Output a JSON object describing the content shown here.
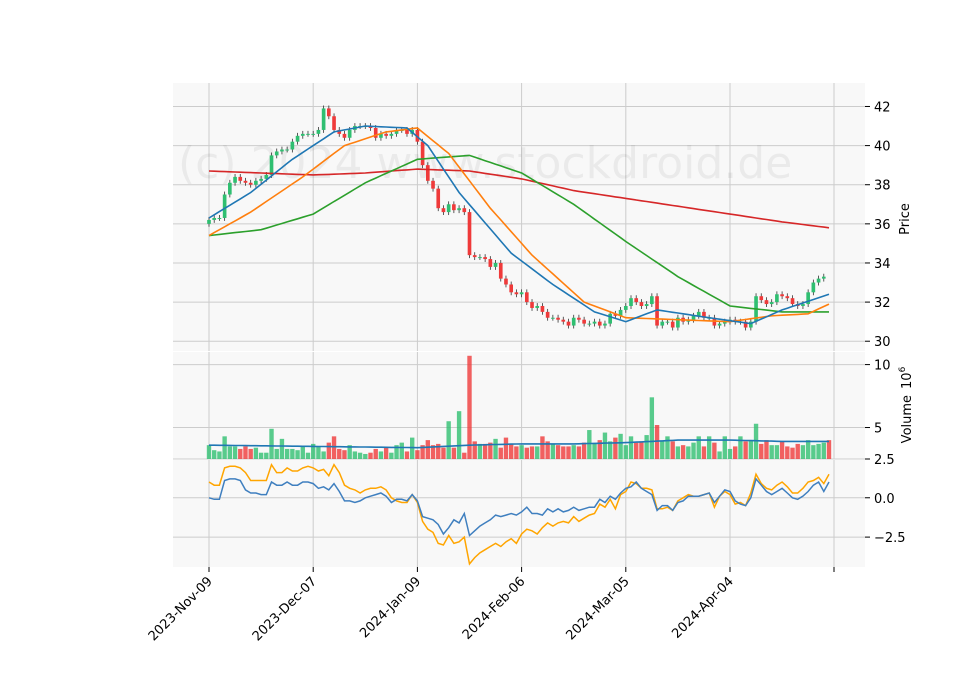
{
  "watermark": "(c) 2024 www.stockdroid.de",
  "colors": {
    "up": "#2fbf71",
    "down": "#ef3a3a",
    "ma_fast": "#1f77b4",
    "ma_mid": "#ff7f0e",
    "ma_slow": "#2ca02c",
    "ma_long": "#d62728",
    "osc_a": "#3f7fbf",
    "osc_b": "#ffa500",
    "panel_bg": "#f8f8f8",
    "grid": "#cccccc"
  },
  "chart_data": {
    "type": "candlestick",
    "x_ticks": [
      "2023-Nov-09",
      "2023-Dec-07",
      "2024-Jan-09",
      "2024-Feb-06",
      "2024-Mar-05",
      "2024-Apr-04"
    ],
    "x_tick_positions": [
      0,
      20,
      40,
      60,
      80,
      100
    ],
    "price_panel": {
      "ylabel": "Price",
      "yticks": [
        30,
        32,
        34,
        36,
        38,
        40,
        42
      ],
      "ylim": [
        29.5,
        43.2
      ],
      "close": [
        36.2,
        36.3,
        36.3,
        37.5,
        38.1,
        38.4,
        38.2,
        38.1,
        38.0,
        38.2,
        38.3,
        38.5,
        39.5,
        39.7,
        39.8,
        39.8,
        40.2,
        40.5,
        40.6,
        40.6,
        40.6,
        40.8,
        41.9,
        41.5,
        40.8,
        40.6,
        40.4,
        40.8,
        41.0,
        41.0,
        41.0,
        40.9,
        40.4,
        40.6,
        40.5,
        40.6,
        40.8,
        40.8,
        40.6,
        40.8,
        40.2,
        39.0,
        38.2,
        37.8,
        36.8,
        36.6,
        37.0,
        36.7,
        36.8,
        36.6,
        34.4,
        34.3,
        34.3,
        34.2,
        33.8,
        34.0,
        33.2,
        32.9,
        32.5,
        32.4,
        32.5,
        32.0,
        31.7,
        31.8,
        31.5,
        31.2,
        31.2,
        31.1,
        31.0,
        30.8,
        31.2,
        31.1,
        30.9,
        30.9,
        31.0,
        30.8,
        30.9,
        31.4,
        31.3,
        31.6,
        31.8,
        32.2,
        32.0,
        31.8,
        31.9,
        32.3,
        30.8,
        31.0,
        31.0,
        30.7,
        31.2,
        31.0,
        31.1,
        31.3,
        31.5,
        31.2,
        31.2,
        30.8,
        30.9,
        31.0,
        31.1,
        31.0,
        31.0,
        30.7,
        31.0,
        32.3,
        32.1,
        31.9,
        32.0,
        32.4,
        32.3,
        32.2,
        31.9,
        31.8,
        31.9,
        32.5,
        33.0,
        33.2,
        33.3
      ],
      "ma_fast_knots": [
        [
          0,
          36.3
        ],
        [
          8,
          37.6
        ],
        [
          16,
          39.3
        ],
        [
          24,
          40.7
        ],
        [
          30,
          41.0
        ],
        [
          38,
          40.9
        ],
        [
          42,
          40.0
        ],
        [
          48,
          37.6
        ],
        [
          58,
          34.5
        ],
        [
          66,
          32.9
        ],
        [
          74,
          31.5
        ],
        [
          80,
          31.0
        ],
        [
          86,
          31.6
        ],
        [
          96,
          31.2
        ],
        [
          104,
          30.9
        ],
        [
          110,
          31.6
        ],
        [
          119,
          32.4
        ]
      ],
      "ma_mid_knots": [
        [
          0,
          35.4
        ],
        [
          8,
          36.6
        ],
        [
          18,
          38.4
        ],
        [
          26,
          40.0
        ],
        [
          34,
          40.7
        ],
        [
          40,
          40.9
        ],
        [
          46,
          39.6
        ],
        [
          54,
          36.8
        ],
        [
          62,
          34.4
        ],
        [
          72,
          32.0
        ],
        [
          80,
          31.2
        ],
        [
          90,
          31.1
        ],
        [
          100,
          31.0
        ],
        [
          108,
          31.3
        ],
        [
          115,
          31.4
        ],
        [
          119,
          31.9
        ]
      ],
      "ma_slow_knots": [
        [
          0,
          35.4
        ],
        [
          10,
          35.7
        ],
        [
          20,
          36.5
        ],
        [
          30,
          38.1
        ],
        [
          40,
          39.3
        ],
        [
          50,
          39.5
        ],
        [
          60,
          38.6
        ],
        [
          70,
          37.0
        ],
        [
          80,
          35.1
        ],
        [
          90,
          33.3
        ],
        [
          100,
          31.8
        ],
        [
          110,
          31.5
        ],
        [
          119,
          31.5
        ]
      ],
      "ma_long_knots": [
        [
          0,
          38.7
        ],
        [
          10,
          38.6
        ],
        [
          20,
          38.5
        ],
        [
          30,
          38.6
        ],
        [
          40,
          38.8
        ],
        [
          50,
          38.7
        ],
        [
          60,
          38.3
        ],
        [
          70,
          37.7
        ],
        [
          80,
          37.3
        ],
        [
          90,
          36.9
        ],
        [
          100,
          36.5
        ],
        [
          110,
          36.1
        ],
        [
          119,
          35.8
        ]
      ]
    },
    "volume_panel": {
      "ylabel": "Volume",
      "yunit_exponent": "6",
      "yticks": [
        2.5,
        5,
        10
      ],
      "ylim": [
        2.5,
        11
      ],
      "volume": [
        3.6,
        3.2,
        3.1,
        4.3,
        3.5,
        3.5,
        3.3,
        3.5,
        3.3,
        3.4,
        3.0,
        3.0,
        4.9,
        3.3,
        4.1,
        3.3,
        3.3,
        3.2,
        3.5,
        3.0,
        3.7,
        3.5,
        3.1,
        3.8,
        4.3,
        3.3,
        3.2,
        3.6,
        3.1,
        3.0,
        2.9,
        3.0,
        3.3,
        3.1,
        3.4,
        3.0,
        3.6,
        3.8,
        3.1,
        4.2,
        3.2,
        3.6,
        4.0,
        3.6,
        3.7,
        3.4,
        5.5,
        3.4,
        6.3,
        3.0,
        10.7,
        3.9,
        3.7,
        3.7,
        3.8,
        4.1,
        3.4,
        4.2,
        3.7,
        3.5,
        3.6,
        3.4,
        3.5,
        3.5,
        4.3,
        3.9,
        3.7,
        3.6,
        3.5,
        3.5,
        3.6,
        3.5,
        3.8,
        4.8,
        3.7,
        4.0,
        4.6,
        3.9,
        4.2,
        4.5,
        3.6,
        4.3,
        3.8,
        3.9,
        4.4,
        7.4,
        5.2,
        3.9,
        4.3,
        3.9,
        3.5,
        3.6,
        3.5,
        3.8,
        4.3,
        3.5,
        4.3,
        3.8,
        3.1,
        4.3,
        3.3,
        3.5,
        4.3,
        3.9,
        4.0,
        5.3,
        3.7,
        4.0,
        3.6,
        3.6,
        3.9,
        3.5,
        3.4,
        3.7,
        3.6,
        4.0,
        3.6,
        3.7,
        3.8,
        4.0
      ],
      "volume_ma_knots": [
        [
          0,
          3.6
        ],
        [
          20,
          3.5
        ],
        [
          40,
          3.4
        ],
        [
          50,
          3.6
        ],
        [
          60,
          3.7
        ],
        [
          70,
          3.7
        ],
        [
          80,
          3.8
        ],
        [
          90,
          4.0
        ],
        [
          100,
          4.0
        ],
        [
          110,
          3.9
        ],
        [
          119,
          3.9
        ]
      ]
    },
    "indicator_panel": {
      "yticks": [
        -2.5,
        0.0
      ],
      "ylim": [
        -4.4,
        2.4
      ],
      "series_a": [
        0.0,
        -0.1,
        -0.1,
        1.1,
        1.2,
        1.2,
        1.1,
        0.5,
        0.3,
        0.3,
        0.2,
        0.2,
        1.0,
        0.8,
        0.8,
        1.0,
        0.8,
        0.8,
        1.0,
        1.0,
        0.9,
        0.6,
        0.7,
        0.5,
        0.9,
        0.4,
        -0.2,
        -0.2,
        -0.3,
        -0.2,
        0.0,
        0.1,
        0.2,
        0.3,
        0.1,
        -0.3,
        -0.1,
        -0.1,
        -0.2,
        0.2,
        -0.2,
        -1.2,
        -1.3,
        -1.4,
        -1.7,
        -2.3,
        -1.9,
        -1.4,
        -1.6,
        -1.0,
        -2.4,
        -2.1,
        -1.8,
        -1.6,
        -1.4,
        -1.1,
        -1.2,
        -1.1,
        -1.0,
        -1.1,
        -0.9,
        -0.6,
        -1.0,
        -1.0,
        -1.1,
        -0.7,
        -0.9,
        -0.7,
        -0.9,
        -0.8,
        -0.6,
        -0.8,
        -0.7,
        -0.6,
        -0.6,
        -0.1,
        -0.3,
        0.1,
        -0.1,
        0.3,
        0.6,
        0.7,
        1.0,
        0.6,
        0.4,
        0.2,
        -0.8,
        -0.5,
        -0.5,
        -0.8,
        -0.3,
        -0.2,
        0.1,
        0.1,
        0.1,
        0.2,
        0.3,
        -0.3,
        0.1,
        0.5,
        0.4,
        -0.2,
        -0.4,
        -0.5,
        0.0,
        1.2,
        0.8,
        0.4,
        0.2,
        0.4,
        0.6,
        0.3,
        0.0,
        -0.1,
        0.1,
        0.4,
        0.8,
        1.0,
        0.4,
        1.0
      ],
      "series_b": [
        1.0,
        0.8,
        0.8,
        1.9,
        2.0,
        2.0,
        1.9,
        1.6,
        1.1,
        1.1,
        1.1,
        1.1,
        2.1,
        1.6,
        1.6,
        1.9,
        1.7,
        1.7,
        1.9,
        2.0,
        1.9,
        1.7,
        1.8,
        1.4,
        2.1,
        1.6,
        0.8,
        0.6,
        0.5,
        0.3,
        0.5,
        0.6,
        0.6,
        0.7,
        0.5,
        0.0,
        -0.2,
        -0.3,
        -0.3,
        0.2,
        -0.3,
        -1.5,
        -2.0,
        -2.2,
        -2.9,
        -3.0,
        -2.4,
        -2.9,
        -2.8,
        -2.5,
        -4.2,
        -3.8,
        -3.5,
        -3.3,
        -3.1,
        -2.9,
        -3.1,
        -2.8,
        -2.6,
        -2.9,
        -2.3,
        -2.0,
        -2.1,
        -2.3,
        -1.9,
        -1.6,
        -1.8,
        -1.6,
        -1.5,
        -1.6,
        -1.2,
        -1.5,
        -1.3,
        -1.1,
        -1.0,
        -0.4,
        -0.6,
        -0.1,
        -0.7,
        0.2,
        0.4,
        1.0,
        0.9,
        0.6,
        0.6,
        0.5,
        -0.7,
        -0.7,
        -0.6,
        -0.8,
        -0.2,
        0.0,
        0.2,
        0.1,
        0.1,
        0.2,
        0.3,
        -0.6,
        0.1,
        0.4,
        0.2,
        -0.4,
        -0.3,
        -0.5,
        0.3,
        1.5,
        0.9,
        0.6,
        0.5,
        0.8,
        1.0,
        0.7,
        0.3,
        0.3,
        0.6,
        1.0,
        1.1,
        1.3,
        0.9,
        1.5
      ]
    }
  }
}
